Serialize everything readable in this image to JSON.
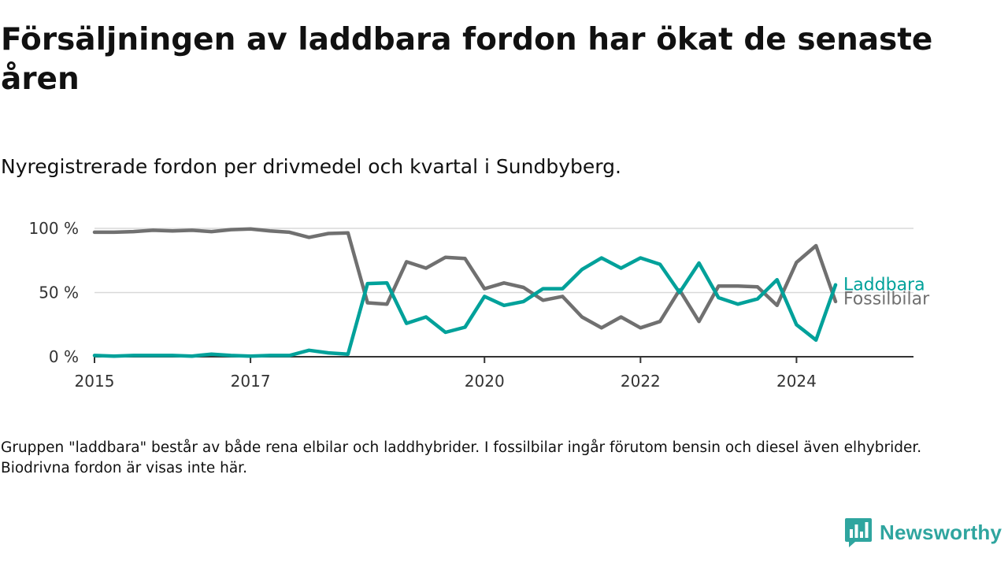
{
  "title": "Försäljningen av laddbara fordon har ökat de senaste åren",
  "subtitle": "Nyregistrerade fordon per drivmedel och kvartal i Sundbyberg.",
  "note": "Gruppen \"laddbara\" består av både rena elbilar och laddhybrider. I fossilbilar ingår förutom bensin och diesel även elhybrider. Biodrivna fordon är visas inte här.",
  "brand": {
    "name": "Newsworthy",
    "color": "#2fa59f",
    "icon": "newsworthy-logo-icon"
  },
  "chart_data": {
    "type": "line",
    "title": "Försäljningen av laddbara fordon har ökat de senaste åren",
    "xlabel": "",
    "ylabel": "",
    "ylim": [
      0,
      100
    ],
    "yticks": [
      0,
      50,
      100
    ],
    "ytick_labels": [
      "0 %",
      "50 %",
      "100 %"
    ],
    "xlim": [
      2015,
      2025.5
    ],
    "xticks": [
      2015,
      2017,
      2020,
      2022,
      2024
    ],
    "xtick_labels": [
      "2015",
      "2017",
      "2020",
      "2022",
      "2024"
    ],
    "grid": true,
    "x": [
      2015,
      2015.25,
      2015.5,
      2015.75,
      2016,
      2016.25,
      2016.5,
      2016.75,
      2017,
      2017.25,
      2017.5,
      2017.75,
      2018,
      2018.25,
      2018.5,
      2018.75,
      2019,
      2019.25,
      2019.5,
      2019.75,
      2020,
      2020.25,
      2020.5,
      2020.75,
      2021,
      2021.25,
      2021.5,
      2021.75,
      2022,
      2022.25,
      2022.5,
      2022.75,
      2023,
      2023.25,
      2023.5,
      2023.75,
      2024,
      2024.25,
      2024.5
    ],
    "series": [
      {
        "name": "Laddbara",
        "color": "#00a19a",
        "values": [
          1,
          0.5,
          1,
          1,
          1,
          0.5,
          2,
          1,
          0.5,
          1,
          1,
          5,
          3,
          2,
          57,
          57.5,
          26,
          31,
          19,
          23,
          47,
          40,
          43,
          53,
          53,
          68,
          77,
          69,
          77,
          72,
          50,
          73,
          46,
          41,
          45,
          60,
          25,
          13,
          56
        ]
      },
      {
        "name": "Fossilbilar",
        "color": "#707070",
        "values": [
          97,
          97,
          97.5,
          98.5,
          98,
          98.5,
          97.5,
          99,
          99.5,
          98,
          97,
          93,
          96,
          96.5,
          42,
          41,
          74,
          69,
          77.5,
          76.5,
          53,
          57.5,
          54,
          44,
          47,
          31,
          22.5,
          31,
          22.5,
          27.5,
          52,
          27.5,
          55,
          55,
          54.5,
          40,
          73.5,
          86.5,
          43
        ]
      }
    ]
  }
}
